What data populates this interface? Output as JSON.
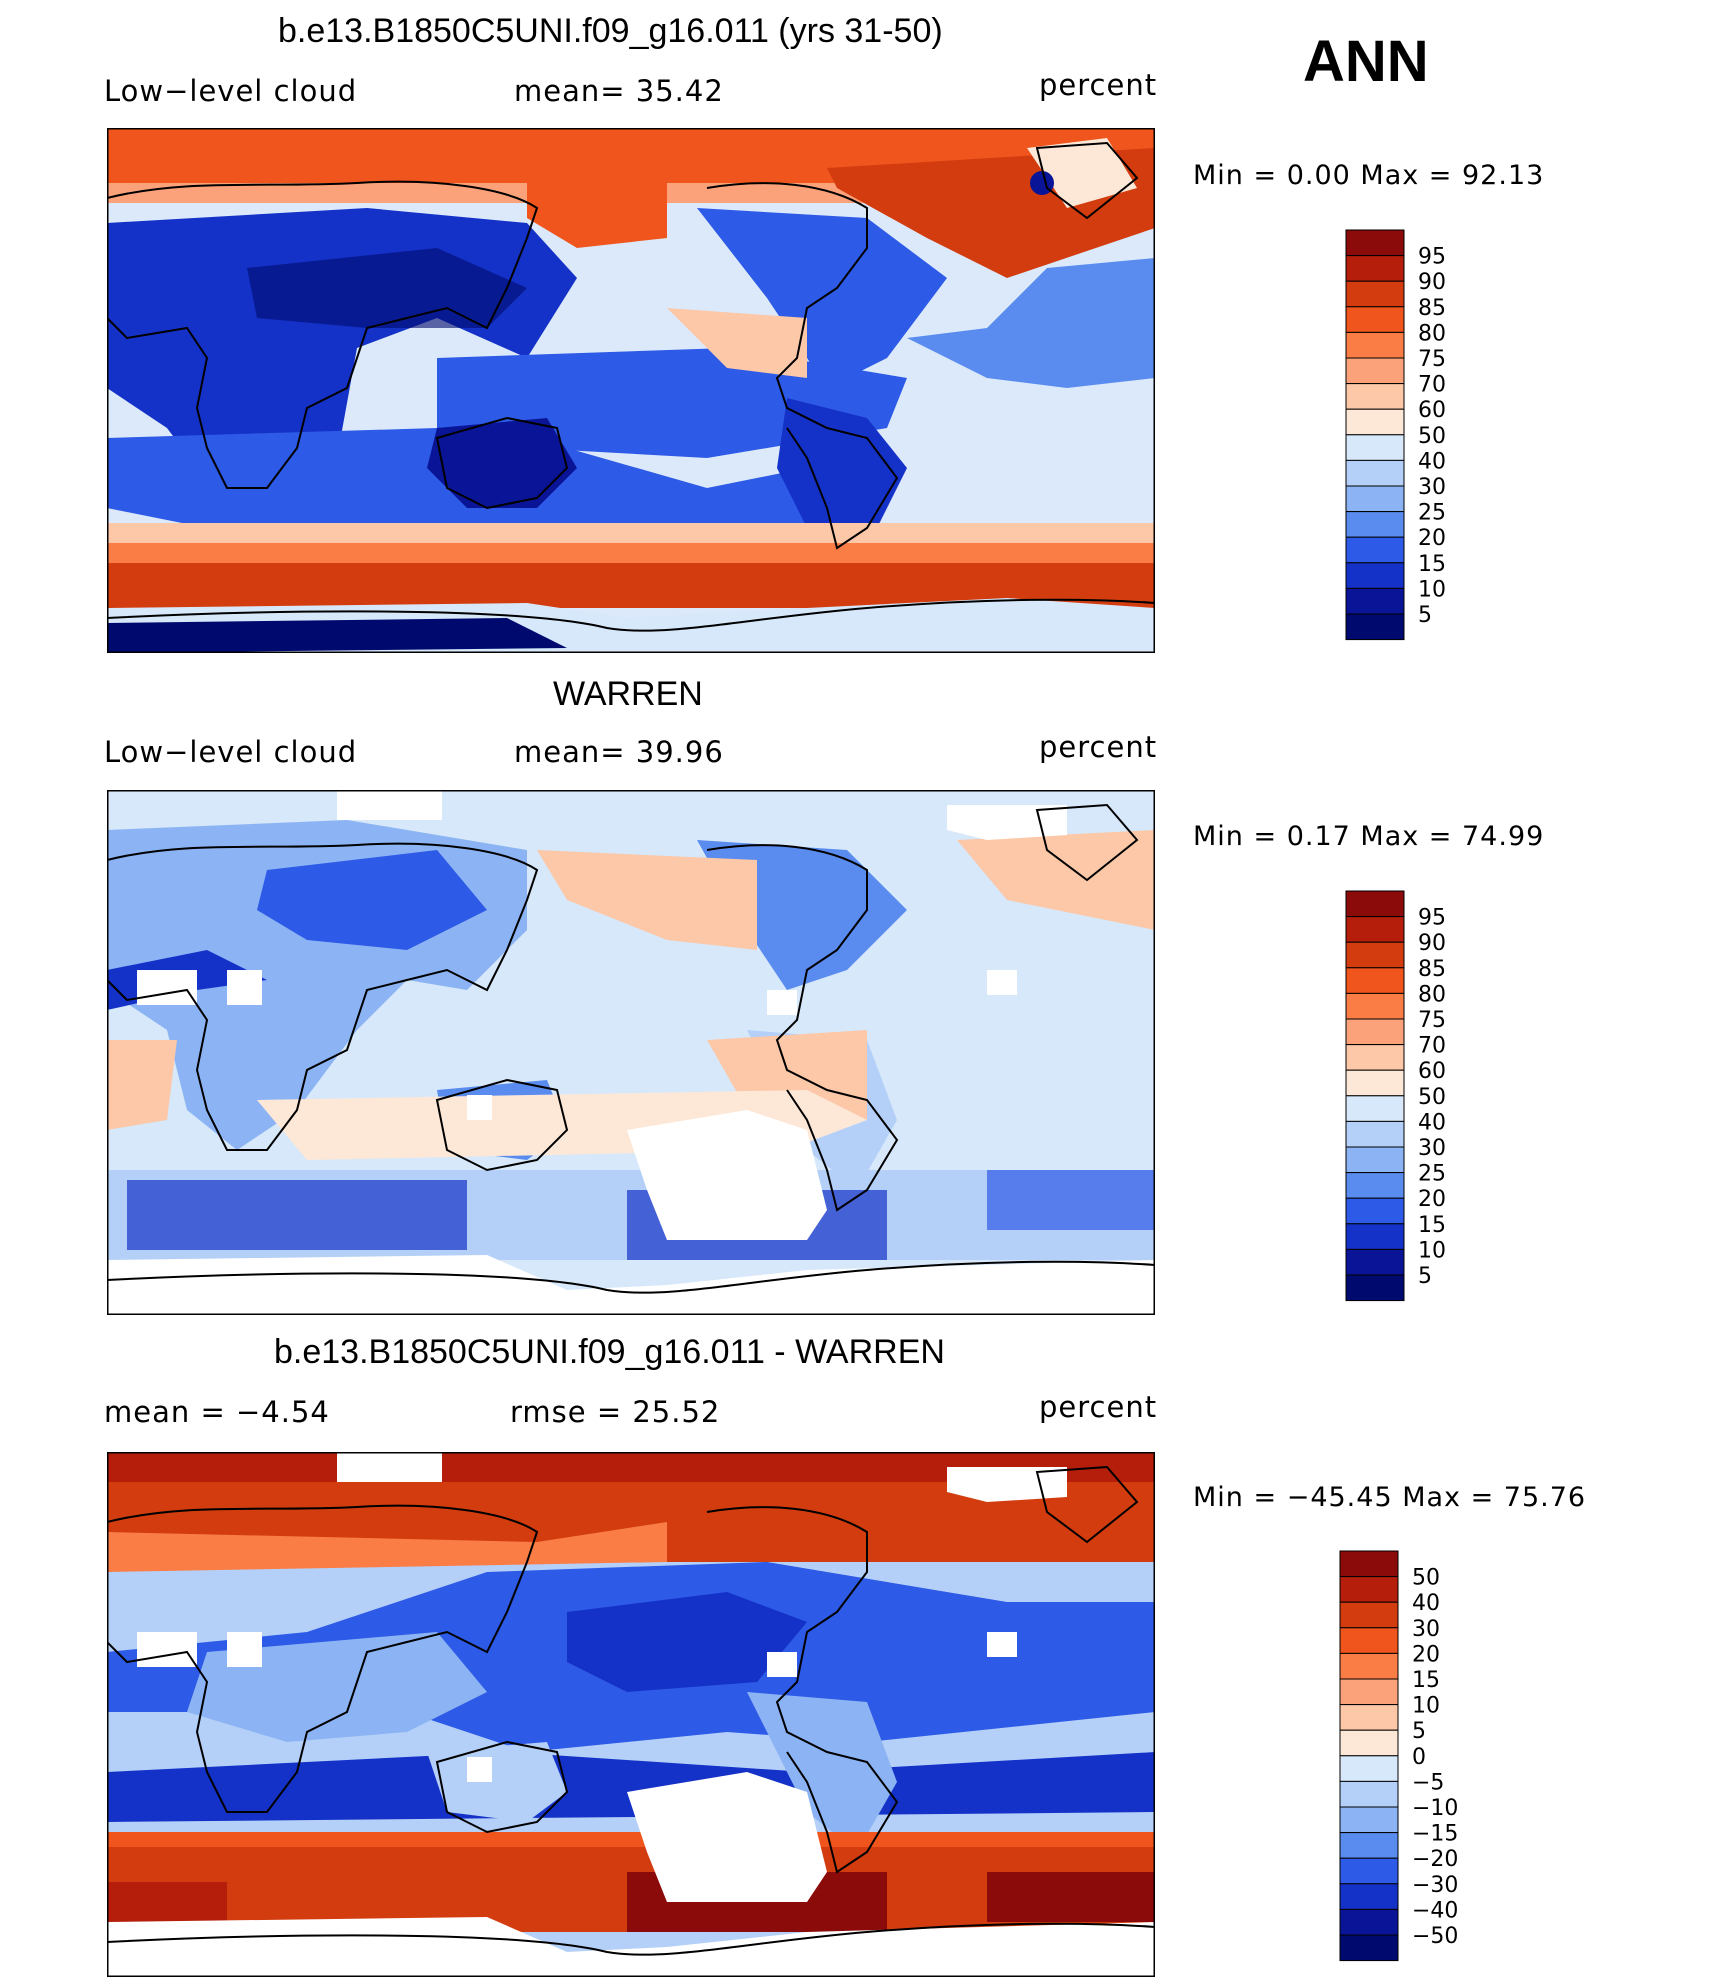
{
  "season": "ANN",
  "panels": [
    {
      "title": "b.e13.B1850C5UNI.f09_g16.011 (yrs 31-50)",
      "left_label": "Low−level cloud",
      "mid_label": "mean=   35.42",
      "units": "percent",
      "minmax": "Min  =     0.00  Max  =    92.13"
    },
    {
      "title": "WARREN",
      "left_label": "Low−level cloud",
      "mid_label": "mean=   39.96",
      "units": "percent",
      "minmax": "Min  =     0.17  Max  =    74.99"
    },
    {
      "title": "b.e13.B1850C5UNI.f09_g16.011 - WARREN",
      "left_label": "mean  =    −4.54",
      "mid_label": "rmse  =    25.52",
      "units": "percent",
      "minmax": "Min  =  −45.45  Max  =     75.76"
    }
  ],
  "chart_data": [
    {
      "type": "heatmap",
      "title": "b.e13.B1850C5UNI.f09_g16.011 (yrs 31-50)",
      "variable": "Low−level cloud",
      "units": "percent",
      "mean": 35.42,
      "min": 0.0,
      "max": 92.13,
      "colorbar_levels": [
        "95",
        "90",
        "85",
        "80",
        "75",
        "70",
        "60",
        "50",
        "40",
        "30",
        "25",
        "20",
        "15",
        "10",
        "5"
      ],
      "colorbar_colors": [
        "#8b0a0a",
        "#b41e0a",
        "#d23c0f",
        "#f0551e",
        "#fa7d46",
        "#fca27a",
        "#fcc8a8",
        "#fde8d8",
        "#d6e8fa",
        "#b4d0f8",
        "#8cb4f4",
        "#5a8cf0",
        "#2d5ae6",
        "#1432c8",
        "#0a1496",
        "#000a6e"
      ]
    },
    {
      "type": "heatmap",
      "title": "WARREN",
      "variable": "Low−level cloud",
      "units": "percent",
      "mean": 39.96,
      "min": 0.17,
      "max": 74.99,
      "colorbar_levels": [
        "95",
        "90",
        "85",
        "80",
        "75",
        "70",
        "60",
        "50",
        "40",
        "30",
        "25",
        "20",
        "15",
        "10",
        "5"
      ],
      "colorbar_colors": [
        "#8b0a0a",
        "#b41e0a",
        "#d23c0f",
        "#f0551e",
        "#fa7d46",
        "#fca27a",
        "#fcc8a8",
        "#fde8d8",
        "#d6e8fa",
        "#b4d0f8",
        "#8cb4f4",
        "#5a8cf0",
        "#2d5ae6",
        "#1432c8",
        "#0a1496",
        "#000a6e"
      ]
    },
    {
      "type": "heatmap",
      "title": "b.e13.B1850C5UNI.f09_g16.011 - WARREN",
      "units": "percent",
      "mean": -4.54,
      "rmse": 25.52,
      "min": -45.45,
      "max": 75.76,
      "colorbar_levels": [
        "50",
        "40",
        "30",
        "20",
        "15",
        "10",
        "5",
        "0",
        "−5",
        "−10",
        "−15",
        "−20",
        "−30",
        "−40",
        "−50"
      ],
      "colorbar_colors": [
        "#8b0a0a",
        "#b41e0a",
        "#d23c0f",
        "#f0551e",
        "#fa7d46",
        "#fca27a",
        "#fcc8a8",
        "#fde8d8",
        "#d6e8fa",
        "#b4d0f8",
        "#8cb4f4",
        "#5a8cf0",
        "#2d5ae6",
        "#1432c8",
        "#0a1496",
        "#000a6e"
      ]
    }
  ]
}
